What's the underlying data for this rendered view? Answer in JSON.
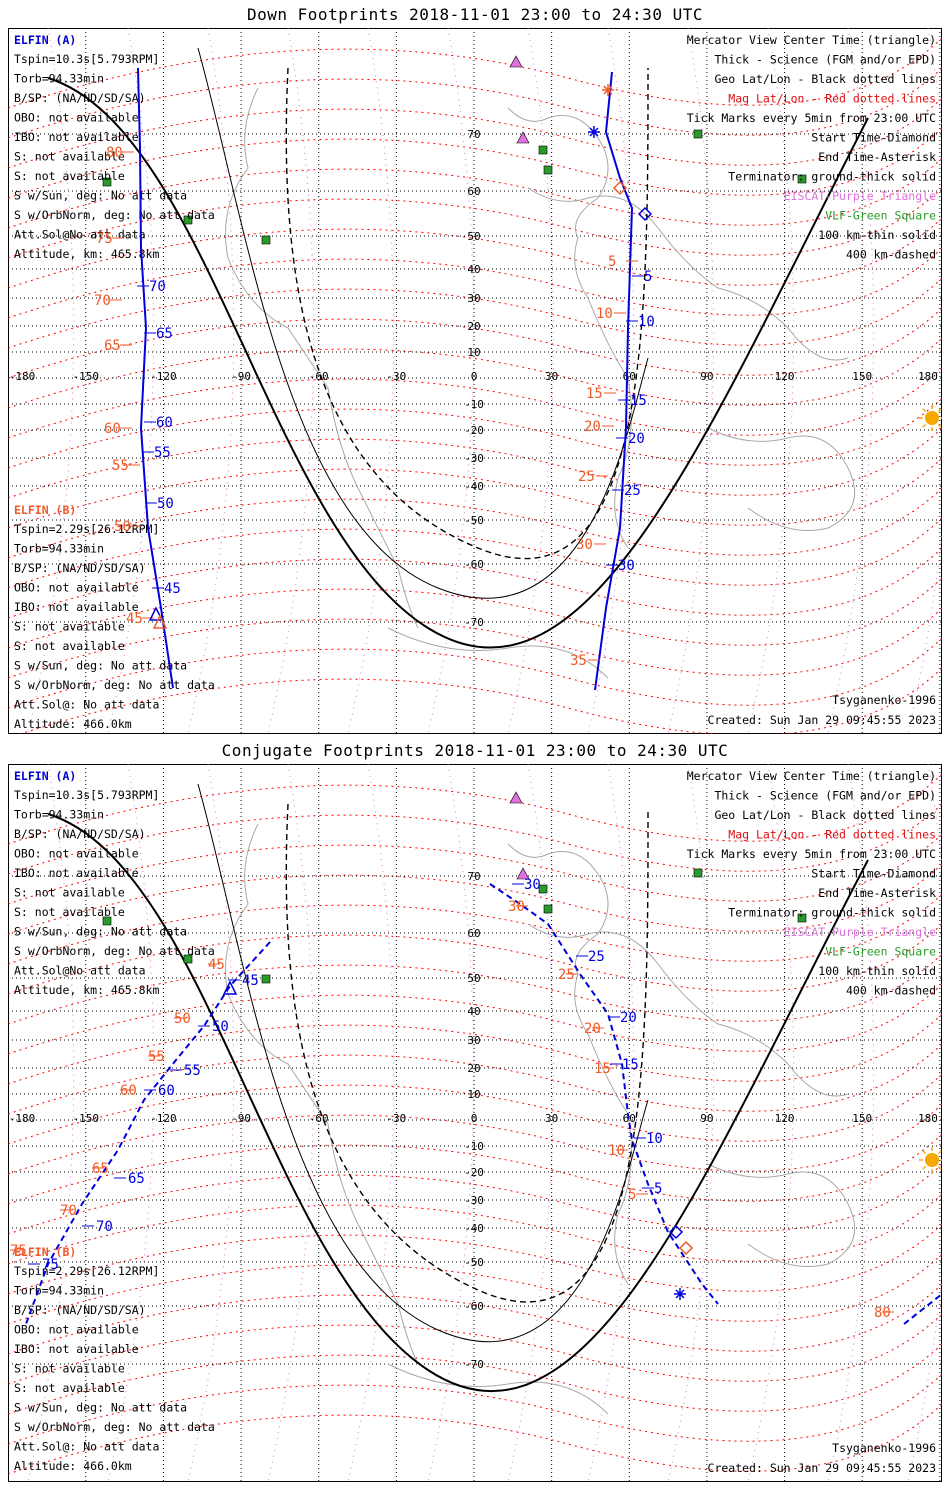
{
  "panels": [
    {
      "title": "Down Footprints 2018-11-01 23:00 to 24:30 UTC",
      "elfin_a": {
        "name": "ELFIN (A)",
        "lines": [
          "Tspin=10.3s[5.793RPM]",
          "Torb=94.33min",
          "B/SP: (NA/ND/SD/SA)",
          "OBO: not available",
          "IBO: not available",
          "S: not available",
          "S: not available",
          "S w/Sun, deg: No att data",
          "S w/OrbNorm, deg: No att data",
          "Att.Sol@No att data",
          "Altitude, km: 465.8km"
        ]
      },
      "elfin_b": {
        "name": "ELFIN (B)",
        "lines": [
          "Tspin=2.29s[26.12RPM]",
          "Torb=94.33min",
          "B/SP: (NA/ND/SD/SA)",
          "OBO: not available",
          "IBO: not available",
          "S: not available",
          "S: not available",
          "S w/Sun, deg: No att data",
          "S w/OrbNorm, deg: No att data",
          "Att.Sol@: No att data",
          "Altitude: 466.0km"
        ]
      },
      "legend": {
        "black": [
          "Mercator View Center Time (triangle)",
          "Thick - Science (FGM and/or EPD)",
          "Geo Lat/Lon - Black dotted lines"
        ],
        "red": "Mag Lat/Lon - Red dotted lines",
        "black2": [
          "Tick Marks every 5min from 23:00 UTC",
          "Start Time-Diamond",
          "End Time-Asterisk",
          "Terminator: ground-thick solid"
        ],
        "purple": "EISCAT-Purple Triangle",
        "green": "VLF-Green Square",
        "black3": [
          "100 km-thin solid",
          "400 km-dashed"
        ]
      },
      "model": "Tsyganenko-1996",
      "created": "Created: Sun Jan 29 09:45:55 2023"
    },
    {
      "title": "Conjugate Footprints 2018-11-01 23:00 to 24:30 UTC",
      "elfin_a": {
        "name": "ELFIN (A)",
        "lines": [
          "Tspin=10.3s[5.793RPM]",
          "Torb=94.33min",
          "B/SP: (NA/ND/SD/SA)",
          "OBO: not available",
          "IBO: not available",
          "S: not available",
          "S: not available",
          "S w/Sun, deg: No att data",
          "S w/OrbNorm, deg: No att data",
          "Att.Sol@No att data",
          "Altitude, km: 465.8km"
        ]
      },
      "elfin_b": {
        "name": "ELFIN (B)",
        "lines": [
          "Tspin=2.29s[26.12RPM]",
          "Torb=94.33min",
          "B/SP: (NA/ND/SD/SA)",
          "OBO: not available",
          "IBO: not available",
          "S: not available",
          "S: not available",
          "S w/Sun, deg: No att data",
          "S w/OrbNorm, deg: No att data",
          "Att.Sol@: No att data",
          "Altitude: 466.0km"
        ]
      },
      "legend": {
        "black": [
          "Mercator View Center Time (triangle)",
          "Thick - Science (FGM and/or EPD)",
          "Geo Lat/Lon - Black dotted lines"
        ],
        "red": "Mag Lat/Lon - Red dotted lines",
        "black2": [
          "Tick Marks every 5min from 23:00 UTC",
          "Start Time-Diamond",
          "End Time-Asterisk",
          "Terminator: ground-thick solid"
        ],
        "purple": "EISCAT-Purple Triangle",
        "green": "VLF-Green Square",
        "black3": [
          "100 km-thin solid",
          "400 km-dashed"
        ]
      },
      "model": "Tsyganenko-1996",
      "created": "Created: Sun Jan 29 09:45:55 2023"
    }
  ],
  "axes": {
    "lon_ticks": [
      "-180",
      "-150",
      "-120",
      "-90",
      "-60",
      "-30",
      "0",
      "30",
      "60",
      "90",
      "120",
      "150",
      "180"
    ],
    "lat_ticks": [
      "70",
      "60",
      "50",
      "40",
      "30",
      "20",
      "10",
      "-10",
      "-20",
      "-30",
      "-40",
      "-50",
      "-60",
      "-70"
    ]
  },
  "tracks": {
    "down_a": {
      "points": [
        [
          -140,
          86
        ],
        [
          -135,
          64
        ],
        [
          -128,
          0
        ],
        [
          -124,
          -50
        ],
        [
          -118,
          -67
        ],
        [
          -114,
          -80
        ]
      ],
      "blue_labels": [
        [
          "-70",
          "70"
        ],
        [
          "-65",
          "65"
        ],
        [
          "-60",
          "60"
        ],
        [
          "-55",
          "55"
        ],
        [
          "-50",
          "50"
        ],
        [
          "-45",
          "45"
        ]
      ],
      "orange_labels": [
        [
          "-80",
          "80"
        ],
        [
          "-75",
          "75"
        ],
        [
          "-70",
          "70"
        ],
        [
          "-65",
          "65"
        ],
        [
          "-60",
          "60"
        ],
        [
          "-55",
          "55"
        ],
        [
          "-50",
          "50"
        ],
        [
          "-45",
          "45"
        ]
      ]
    },
    "down_b": {
      "points": [
        [
          53,
          84
        ],
        [
          50,
          72
        ],
        [
          47,
          56
        ],
        [
          45,
          40
        ],
        [
          43,
          20
        ],
        [
          42,
          0
        ],
        [
          40,
          -20
        ],
        [
          38,
          -40
        ],
        [
          35,
          -60
        ],
        [
          30,
          -72
        ],
        [
          27,
          -80
        ]
      ],
      "blue_labels": [
        [
          "5"
        ],
        [
          "10"
        ],
        [
          "15"
        ],
        [
          "20"
        ],
        [
          "25"
        ],
        [
          "30"
        ]
      ],
      "orange_labels": [
        [
          "5"
        ],
        [
          "10"
        ],
        [
          "15"
        ],
        [
          "20"
        ],
        [
          "25"
        ],
        [
          "30"
        ],
        [
          "35"
        ]
      ]
    },
    "conj_a_labels": {
      "blue": [
        "45",
        "50",
        "55",
        "60",
        "65",
        "70",
        "75"
      ],
      "orange": [
        "45",
        "50",
        "55",
        "60",
        "65",
        "70",
        "75"
      ]
    },
    "conj_b_labels": {
      "blue": [
        "30",
        "25",
        "20",
        "15",
        "10",
        "5"
      ],
      "orange": [
        "30",
        "25",
        "20",
        "15",
        "10",
        "5",
        "80"
      ]
    }
  },
  "colors": {
    "blue": "#0000dd",
    "orange": "#f05a28",
    "red_grid": "#ff0000",
    "purple": "#e070e0",
    "green": "#2a9a2a",
    "sun": "#f5a800"
  },
  "icons": {
    "sun": "sun-icon",
    "eiscat": "triangle-icon",
    "vlf": "square-icon"
  }
}
